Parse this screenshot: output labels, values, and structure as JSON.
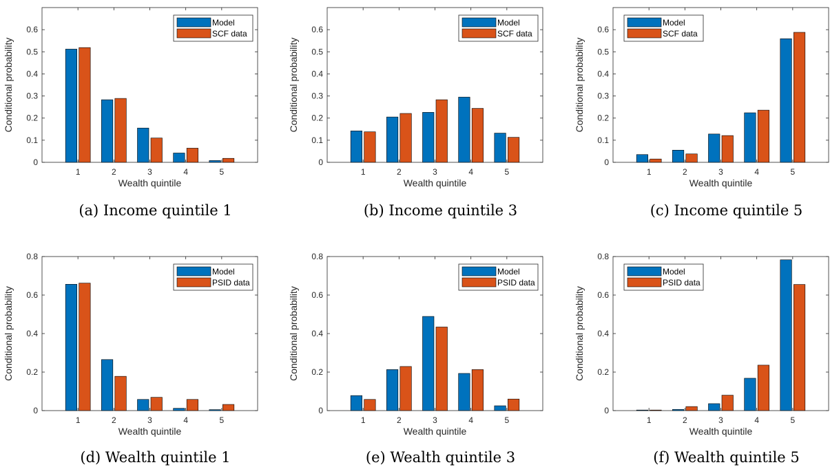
{
  "colors": {
    "model": "#0072BD",
    "data": "#D95319"
  },
  "chart_data": [
    {
      "type": "bar",
      "caption": "(a) Income quintile 1",
      "xlabel": "Wealth quintile",
      "ylabel": "Conditional probability",
      "categories": [
        "1",
        "2",
        "3",
        "4",
        "5"
      ],
      "ylim": [
        0,
        0.7
      ],
      "yticks": [
        0,
        0.1,
        0.2,
        0.3,
        0.4,
        0.5,
        0.6
      ],
      "ytick_labels": [
        "0",
        "0.1",
        "0.2",
        "0.3",
        "0.4",
        "0.5",
        "0.6"
      ],
      "legend_position": "top-right",
      "series": [
        {
          "name": "Model",
          "values": [
            0.512,
            0.283,
            0.155,
            0.042,
            0.008
          ]
        },
        {
          "name": "SCF data",
          "values": [
            0.519,
            0.289,
            0.11,
            0.064,
            0.018
          ]
        }
      ]
    },
    {
      "type": "bar",
      "caption": "(b) Income quintile 3",
      "xlabel": "Wealth quintile",
      "ylabel": "Conditional probability",
      "categories": [
        "1",
        "2",
        "3",
        "4",
        "5"
      ],
      "ylim": [
        0,
        0.7
      ],
      "yticks": [
        0,
        0.1,
        0.2,
        0.3,
        0.4,
        0.5,
        0.6
      ],
      "ytick_labels": [
        "0",
        "0.1",
        "0.2",
        "0.3",
        "0.4",
        "0.5",
        "0.6"
      ],
      "legend_position": "top-right",
      "series": [
        {
          "name": "Model",
          "values": [
            0.142,
            0.205,
            0.226,
            0.295,
            0.132
          ]
        },
        {
          "name": "SCF data",
          "values": [
            0.138,
            0.221,
            0.283,
            0.244,
            0.113
          ]
        }
      ]
    },
    {
      "type": "bar",
      "caption": "(c) Income quintile 5",
      "xlabel": "Wealth quintile",
      "ylabel": "Conditional probability",
      "categories": [
        "1",
        "2",
        "3",
        "4",
        "5"
      ],
      "ylim": [
        0,
        0.7
      ],
      "yticks": [
        0,
        0.1,
        0.2,
        0.3,
        0.4,
        0.5,
        0.6
      ],
      "ytick_labels": [
        "0",
        "0.1",
        "0.2",
        "0.3",
        "0.4",
        "0.5",
        "0.6"
      ],
      "legend_position": "top-left",
      "series": [
        {
          "name": "Model",
          "values": [
            0.035,
            0.055,
            0.128,
            0.224,
            0.559
          ]
        },
        {
          "name": "SCF data",
          "values": [
            0.015,
            0.038,
            0.121,
            0.236,
            0.588
          ]
        }
      ]
    },
    {
      "type": "bar",
      "caption": "(d) Wealth quintile 1",
      "xlabel": "Wealth quintile",
      "ylabel": "Conditional probability",
      "categories": [
        "1",
        "2",
        "3",
        "4",
        "5"
      ],
      "ylim": [
        0,
        0.8
      ],
      "yticks": [
        0,
        0.2,
        0.4,
        0.6,
        0.8
      ],
      "ytick_labels": [
        "0",
        "0.2",
        "0.4",
        "0.6",
        "0.8"
      ],
      "legend_position": "top-right",
      "series": [
        {
          "name": "Model",
          "values": [
            0.656,
            0.265,
            0.058,
            0.012,
            0.005
          ]
        },
        {
          "name": "PSID data",
          "values": [
            0.662,
            0.178,
            0.069,
            0.058,
            0.032
          ]
        }
      ]
    },
    {
      "type": "bar",
      "caption": "(e) Wealth quintile 3",
      "xlabel": "Wealth quintile",
      "ylabel": "Conditional probability",
      "categories": [
        "1",
        "2",
        "3",
        "4",
        "5"
      ],
      "ylim": [
        0,
        0.8
      ],
      "yticks": [
        0,
        0.2,
        0.4,
        0.6,
        0.8
      ],
      "ytick_labels": [
        "0",
        "0.2",
        "0.4",
        "0.6",
        "0.8"
      ],
      "legend_position": "top-right",
      "series": [
        {
          "name": "Model",
          "values": [
            0.078,
            0.213,
            0.489,
            0.193,
            0.025
          ]
        },
        {
          "name": "PSID data",
          "values": [
            0.058,
            0.229,
            0.434,
            0.213,
            0.06
          ]
        }
      ]
    },
    {
      "type": "bar",
      "caption": "(f) Wealth quintile 5",
      "xlabel": "Wealth quintile",
      "ylabel": "Conditional probability",
      "categories": [
        "1",
        "2",
        "3",
        "4",
        "5"
      ],
      "ylim": [
        0,
        0.8
      ],
      "yticks": [
        0,
        0.2,
        0.4,
        0.6,
        0.8
      ],
      "ytick_labels": [
        "0",
        "0.2",
        "0.4",
        "0.6",
        "0.8"
      ],
      "legend_position": "top-left",
      "series": [
        {
          "name": "Model",
          "values": [
            0.003,
            0.006,
            0.036,
            0.168,
            0.783
          ]
        },
        {
          "name": "PSID data",
          "values": [
            0.003,
            0.021,
            0.08,
            0.236,
            0.655
          ]
        }
      ]
    }
  ]
}
